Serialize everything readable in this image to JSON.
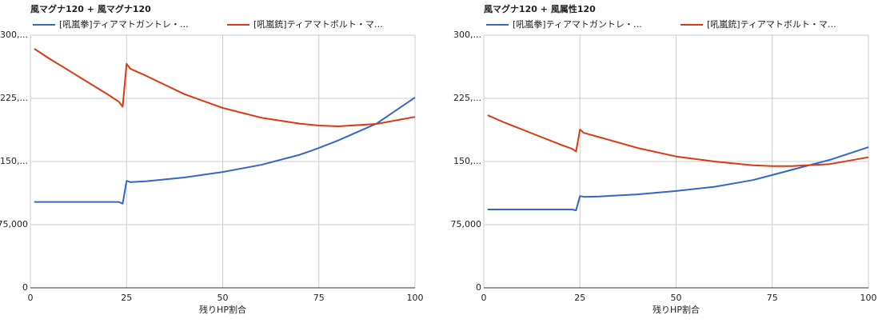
{
  "chart_data": [
    {
      "type": "line",
      "title": "風マグナ120 + 風マグナ120",
      "x_label": "残りHP割合",
      "x": [
        1,
        5,
        10,
        15,
        20,
        23,
        24,
        25,
        26,
        30,
        40,
        50,
        60,
        70,
        75,
        80,
        90,
        100
      ],
      "series": [
        {
          "name": "[吼嵐拳]ティアマトガントレ・…",
          "color": "#3366cc",
          "values": [
            102000,
            102000,
            102000,
            102000,
            102000,
            102000,
            100000,
            127000,
            125500,
            126500,
            131000,
            137600,
            146000,
            158000,
            166000,
            175000,
            195000,
            226000
          ]
        },
        {
          "name": "[吼嵐銃]ティアマトボルト・マ…",
          "color": "#dc3912",
          "values": [
            284000,
            272000,
            258000,
            244000,
            230000,
            221000,
            215000,
            266000,
            260000,
            252000,
            230000,
            213600,
            202000,
            195000,
            192700,
            191800,
            194600,
            203000
          ]
        }
      ],
      "xlim": [
        0,
        100
      ],
      "xticks": [
        0,
        25,
        50,
        75,
        100
      ],
      "ylim": [
        0,
        300000
      ],
      "yticks": [
        0,
        {
          "value": 75000,
          "label": "75,000"
        },
        {
          "value": 150000,
          "label": "150,..."
        },
        {
          "value": 225000,
          "label": "225,..."
        },
        {
          "value": 300000,
          "label": "300,..."
        }
      ],
      "grid": true
    },
    {
      "type": "line",
      "title": "風マグナ120 + 風属性120",
      "x_label": "残りHP割合",
      "x": [
        1,
        5,
        10,
        15,
        20,
        23,
        24,
        25,
        26,
        30,
        40,
        50,
        60,
        70,
        75,
        80,
        90,
        100
      ],
      "series": [
        {
          "name": "[吼嵐拳]ティアマトガントレ・…",
          "color": "#3366cc",
          "values": [
            93000,
            93000,
            93000,
            93000,
            93000,
            93000,
            92000,
            109000,
            108000,
            108500,
            111000,
            115000,
            120000,
            128000,
            134000,
            140000,
            152000,
            167000
          ]
        },
        {
          "name": "[吼嵐銃]ティアマトボルト・マ…",
          "color": "#dc3912",
          "values": [
            205000,
            197000,
            188000,
            179000,
            170000,
            165000,
            162000,
            188000,
            184000,
            179000,
            166000,
            156000,
            150000,
            145500,
            144500,
            144500,
            147000,
            155000
          ]
        }
      ],
      "xlim": [
        0,
        100
      ],
      "xticks": [
        0,
        25,
        50,
        75,
        100
      ],
      "ylim": [
        0,
        300000
      ],
      "yticks": [
        0,
        {
          "value": 75000,
          "label": "75,000"
        },
        {
          "value": 150000,
          "label": "150,..."
        },
        {
          "value": 225000,
          "label": "225,..."
        },
        {
          "value": 300000,
          "label": "300,..."
        }
      ],
      "grid": true
    }
  ]
}
